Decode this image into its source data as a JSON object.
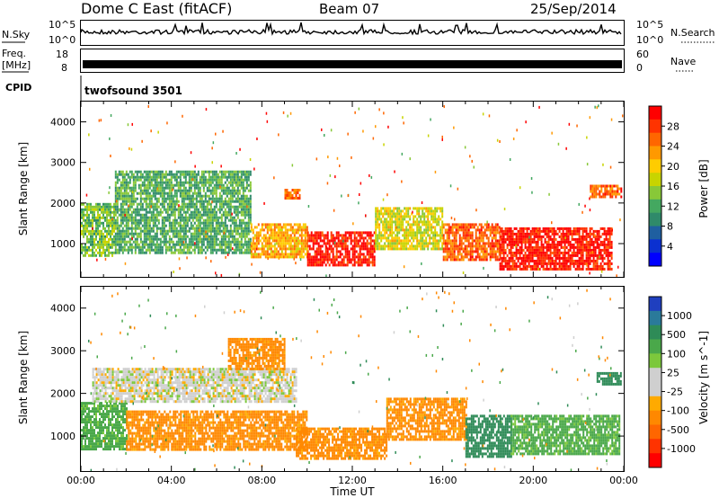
{
  "header": {
    "station": "Dome C East (fitACF)",
    "beam": "Beam 07",
    "date": "25/Sep/2014"
  },
  "noise": {
    "left_label": "N.Sky",
    "right_label": "N.Search",
    "left_tick_top": "10^5",
    "left_tick_bottom": "10^0",
    "right_tick_top": "10^5",
    "right_tick_bottom": "10^0"
  },
  "freq": {
    "label_line1": "Freq.",
    "label_line2": "[MHz]",
    "tick_top": "18",
    "tick_bottom": "8",
    "right_label": "Nave",
    "right_tick_top": "60",
    "right_tick_bottom": "0"
  },
  "cpid": {
    "label": "CPID",
    "program": "twofsound 3501"
  },
  "power_panel": {
    "ylabel": "Slant Range [km]",
    "colorbar_label": "Power [dB]",
    "colorbar_ticks": [
      "28",
      "24",
      "20",
      "16",
      "12",
      "8",
      "4"
    ],
    "colorbar_colors": [
      "#ff0000",
      "#ff3300",
      "#ff6600",
      "#ff9900",
      "#ffcc00",
      "#c8d400",
      "#88c838",
      "#44a860",
      "#2f8a6a",
      "#1f5fa0",
      "#0b30d0",
      "#0000ff"
    ]
  },
  "velocity_panel": {
    "ylabel": "Slant Range [km]",
    "colorbar_label": "Velocity [m s^-1]",
    "colorbar_ticks": [
      "1000",
      "500",
      "100",
      "25",
      "-25",
      "-100",
      "-500",
      "-1000"
    ],
    "colorbar_colors": [
      "#1f3fbf",
      "#2a7a9a",
      "#2e8b57",
      "#4aa84a",
      "#7cc83c",
      "#cfcfcf",
      "#cfcfcf",
      "#ffaa00",
      "#ff8800",
      "#ff6600",
      "#ff3300",
      "#ff0000"
    ]
  },
  "xaxis": {
    "label": "Time UT",
    "ticks": [
      "00:00",
      "04:00",
      "08:00",
      "12:00",
      "16:00",
      "20:00",
      "00:00"
    ]
  },
  "chart_data": [
    {
      "type": "heatmap",
      "title": "Dome C East (fitACF)",
      "xlabel": "Time UT",
      "ylabel": "Slant Range [km]",
      "x_range_hours": [
        0,
        24
      ],
      "ylim": [
        180,
        4500
      ],
      "yticks": [
        1000,
        2000,
        3000,
        4000
      ],
      "colorbar": {
        "label": "Power [dB]",
        "range": [
          0,
          32
        ],
        "ticks": [
          4,
          8,
          12,
          16,
          20,
          24,
          28
        ]
      },
      "regions": [
        {
          "t": [
            0.0,
            1.5
          ],
          "range": [
            700,
            2000
          ],
          "value": 14
        },
        {
          "t": [
            1.5,
            7.5
          ],
          "range": [
            800,
            2800
          ],
          "value": 12
        },
        {
          "t": [
            7.5,
            10.0
          ],
          "range": [
            700,
            1500
          ],
          "value": 22
        },
        {
          "t": [
            9.0,
            9.7
          ],
          "range": [
            2150,
            2350
          ],
          "value": 26
        },
        {
          "t": [
            10.0,
            13.0
          ],
          "range": [
            500,
            1300
          ],
          "value": 30
        },
        {
          "t": [
            13.0,
            16.0
          ],
          "range": [
            900,
            1900
          ],
          "value": 18
        },
        {
          "t": [
            16.0,
            18.5
          ],
          "range": [
            600,
            1500
          ],
          "value": 26
        },
        {
          "t": [
            18.5,
            23.5
          ],
          "range": [
            400,
            1400
          ],
          "value": 30
        },
        {
          "t": [
            22.5,
            23.9
          ],
          "range": [
            2150,
            2450
          ],
          "value": 26
        }
      ]
    },
    {
      "type": "heatmap",
      "xlabel": "Time UT",
      "ylabel": "Slant Range [km]",
      "x_range_hours": [
        0,
        24
      ],
      "ylim": [
        180,
        4500
      ],
      "yticks": [
        1000,
        2000,
        3000,
        4000
      ],
      "colorbar": {
        "label": "Velocity [m s^-1]",
        "ticks": [
          1000,
          500,
          100,
          25,
          -25,
          -100,
          -500,
          -1000
        ]
      },
      "regions": [
        {
          "t": [
            0.0,
            2.0
          ],
          "range": [
            700,
            1800
          ],
          "value": 100
        },
        {
          "t": [
            0.5,
            9.5
          ],
          "range": [
            1800,
            2600
          ],
          "value": 0
        },
        {
          "t": [
            2.0,
            10.0
          ],
          "range": [
            700,
            1600
          ],
          "value": -100
        },
        {
          "t": [
            6.5,
            9.0
          ],
          "range": [
            2600,
            3300
          ],
          "value": -100
        },
        {
          "t": [
            9.5,
            13.5
          ],
          "range": [
            500,
            1200
          ],
          "value": -100
        },
        {
          "t": [
            13.5,
            17.0
          ],
          "range": [
            900,
            1900
          ],
          "value": -100
        },
        {
          "t": [
            17.0,
            19.0
          ],
          "range": [
            500,
            1500
          ],
          "value": 500
        },
        {
          "t": [
            19.0,
            23.8
          ],
          "range": [
            600,
            1500
          ],
          "value": 100
        },
        {
          "t": [
            22.8,
            23.9
          ],
          "range": [
            2200,
            2500
          ],
          "value": 500
        }
      ]
    }
  ]
}
